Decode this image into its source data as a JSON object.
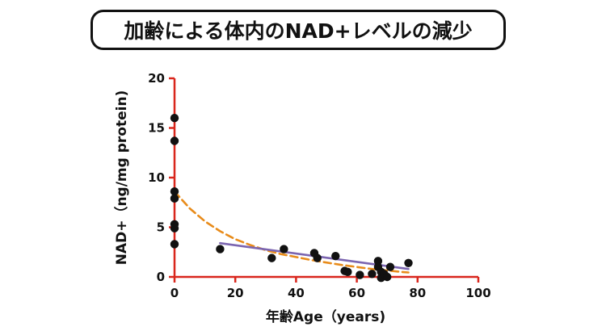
{
  "title": "加齢による体内のNAD+レベルの減少",
  "chart_data": {
    "type": "scatter",
    "title": "加齢による体内のNAD+レベルの減少",
    "xlabel": "年齢Age（years)",
    "ylabel": "NAD+（ng/mg protein)",
    "xlim": [
      0,
      100
    ],
    "ylim": [
      0,
      20
    ],
    "xticks": [
      0,
      20,
      40,
      60,
      80,
      100
    ],
    "yticks": [
      0,
      5,
      10,
      15,
      20
    ],
    "grid": false,
    "points": [
      {
        "x": 0,
        "y": 16.0
      },
      {
        "x": 0,
        "y": 13.7
      },
      {
        "x": 0,
        "y": 8.6
      },
      {
        "x": 0,
        "y": 7.9
      },
      {
        "x": 0,
        "y": 5.3
      },
      {
        "x": 0,
        "y": 4.9
      },
      {
        "x": 0,
        "y": 3.3
      },
      {
        "x": 15,
        "y": 2.8
      },
      {
        "x": 32,
        "y": 1.9
      },
      {
        "x": 36,
        "y": 2.8
      },
      {
        "x": 46,
        "y": 2.4
      },
      {
        "x": 47,
        "y": 1.9
      },
      {
        "x": 53,
        "y": 2.1
      },
      {
        "x": 56,
        "y": 0.6
      },
      {
        "x": 57,
        "y": 0.5
      },
      {
        "x": 61,
        "y": 0.2
      },
      {
        "x": 65,
        "y": 0.3
      },
      {
        "x": 67,
        "y": 1.6
      },
      {
        "x": 67,
        "y": 1.0
      },
      {
        "x": 68,
        "y": 0.5
      },
      {
        "x": 68,
        "y": -0.1
      },
      {
        "x": 69,
        "y": 0.3
      },
      {
        "x": 70,
        "y": 0.0
      },
      {
        "x": 71,
        "y": 1.0
      },
      {
        "x": 77,
        "y": 1.4
      }
    ],
    "series": [
      {
        "name": "exponential-fit",
        "style": "dashed",
        "color": "#E88B1A",
        "x": [
          0,
          5,
          10,
          15,
          20,
          25,
          30,
          35,
          40,
          45,
          50,
          55,
          60,
          65,
          70,
          75,
          77
        ],
        "y": [
          8.6,
          6.9,
          5.6,
          4.6,
          3.8,
          3.2,
          2.7,
          2.3,
          2.0,
          1.7,
          1.45,
          1.2,
          1.0,
          0.8,
          0.65,
          0.5,
          0.45
        ]
      },
      {
        "name": "linear-fit",
        "style": "solid",
        "color": "#7B65B0",
        "x": [
          15,
          77
        ],
        "y": [
          3.4,
          0.8
        ]
      }
    ],
    "colors": {
      "axis": "#D9261C",
      "points": "#111111"
    }
  }
}
